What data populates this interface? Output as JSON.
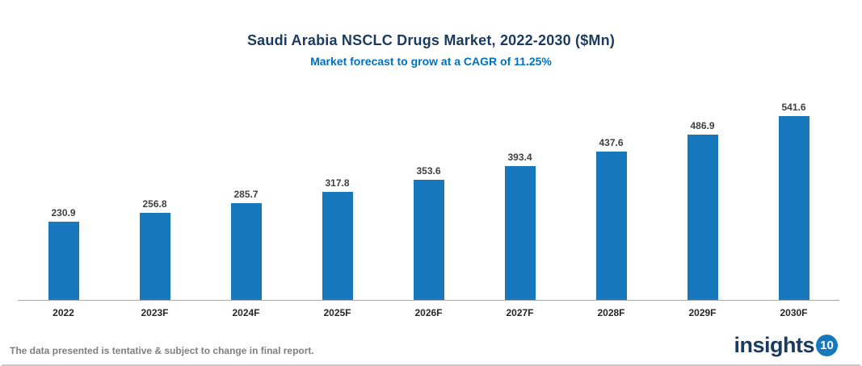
{
  "chart_data": {
    "type": "bar",
    "title": "Saudi Arabia NSCLC Drugs Market, 2022-2030 ($Mn)",
    "subtitle": "Market forecast to grow at a CAGR of 11.25%",
    "categories": [
      "2022",
      "2023F",
      "2024F",
      "2025F",
      "2026F",
      "2027F",
      "2028F",
      "2029F",
      "2030F"
    ],
    "values": [
      230.9,
      256.8,
      285.7,
      317.8,
      353.6,
      393.4,
      437.6,
      486.9,
      541.6
    ],
    "xlabel": "",
    "ylabel": "",
    "ylim": [
      0,
      560
    ],
    "grid": false,
    "legend": "none",
    "bar_color": "#1878be"
  },
  "footer": {
    "note": "The data presented is tentative & subject to change in final report."
  },
  "logo": {
    "text": "insights",
    "badge": "10"
  },
  "colors": {
    "title": "#1b3a5f",
    "subtitle": "#0070c0",
    "bar": "#1878be",
    "value_label": "#3f3f3f",
    "tick_label": "#262626"
  }
}
